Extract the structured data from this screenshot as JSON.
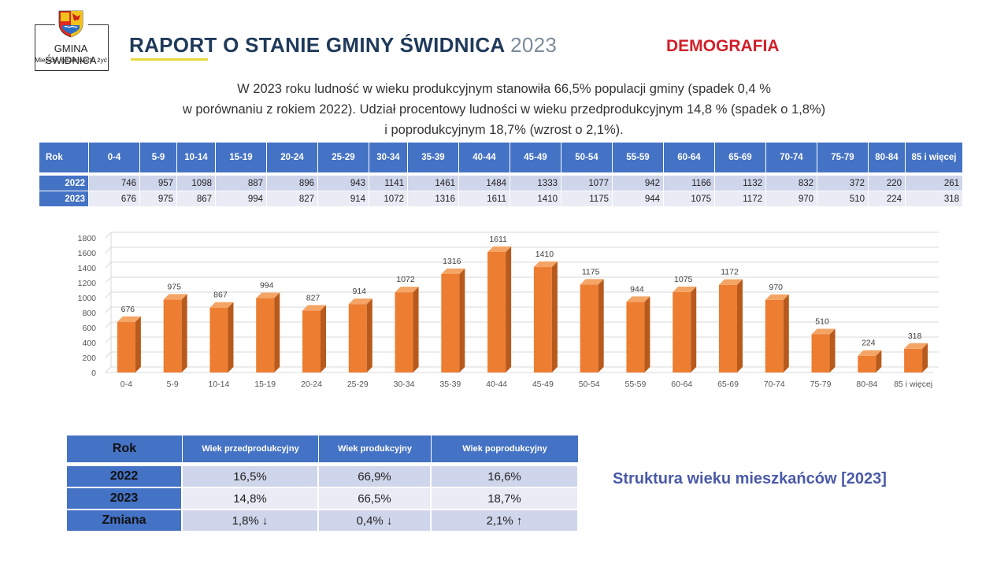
{
  "header": {
    "logo_name": "GMINA ŚWIDNICA",
    "logo_tagline": "Miejsce, gdzie warto żyć",
    "title_main": "RAPORT O STANIE GMINY ŚWIDNICA",
    "title_year": "2023",
    "section": "DEMOGRAFIA"
  },
  "intro": {
    "line1": "W 2023 roku ludność w wieku produkcyjnym stanowiła 66,5% populacji gminy (spadek 0,4 %",
    "line2": "w porównaniu z rokiem 2022). Udział procentowy ludności w wieku przedprodukcyjnym 14,8 % (spadek o 1,8%)",
    "line3": "i poprodukcyjnym 18,7% (wzrost o 2,1%)."
  },
  "age_table": {
    "header": [
      "Rok",
      "0-4",
      "5-9",
      "10-14",
      "15-19",
      "20-24",
      "25-29",
      "30-34",
      "35-39",
      "40-44",
      "45-49",
      "50-54",
      "55-59",
      "60-64",
      "65-69",
      "70-74",
      "75-79",
      "80-84",
      "85 i więcej"
    ],
    "rows": [
      {
        "year": "2022",
        "values": [
          "746",
          "957",
          "1098",
          "887",
          "896",
          "943",
          "1141",
          "1461",
          "1484",
          "1333",
          "1077",
          "942",
          "1166",
          "1132",
          "832",
          "372",
          "220",
          "261"
        ]
      },
      {
        "year": "2023",
        "values": [
          "676",
          "975",
          "867",
          "994",
          "827",
          "914",
          "1072",
          "1316",
          "1611",
          "1410",
          "1175",
          "944",
          "1075",
          "1172",
          "970",
          "510",
          "224",
          "318"
        ]
      }
    ]
  },
  "chart_data": {
    "type": "bar",
    "categories": [
      "0-4",
      "5-9",
      "10-14",
      "15-19",
      "20-24",
      "25-29",
      "30-34",
      "35-39",
      "40-44",
      "45-49",
      "50-54",
      "55-59",
      "60-64",
      "65-69",
      "70-74",
      "75-79",
      "80-84",
      "85 i więcej"
    ],
    "values": [
      676,
      975,
      867,
      994,
      827,
      914,
      1072,
      1316,
      1611,
      1410,
      1175,
      944,
      1075,
      1172,
      970,
      510,
      224,
      318
    ],
    "ylim": [
      0,
      1800
    ],
    "yticks": [
      0,
      200,
      400,
      600,
      800,
      1000,
      1200,
      1400,
      1600,
      1800
    ],
    "grid": true,
    "bar_color": "#ed7d31",
    "bar_side_color": "#b85a1c",
    "bar_top_color": "#f4a565"
  },
  "structure_table": {
    "header": [
      "Rok",
      "Wiek przedprodukcyjny",
      "Wiek produkcyjny",
      "Wiek poprodukcyjny"
    ],
    "rows": [
      {
        "label": "2022",
        "values": [
          "16,5%",
          "66,9%",
          "16,6%"
        ]
      },
      {
        "label": "2023",
        "values": [
          "14,8%",
          "66,5%",
          "18,7%"
        ]
      },
      {
        "label": "Zmiana",
        "values": [
          "1,8% ↓",
          "0,4% ↓",
          "2,1% ↑"
        ]
      }
    ]
  },
  "caption": "Struktura wieku mieszkańców [2023]",
  "colors": {
    "table_header": "#4472c4",
    "row_dark": "#cfd5ea",
    "row_light": "#e9ebf5",
    "title": "#1f3a5a",
    "section": "#d0202a",
    "caption": "#4a5aa8"
  }
}
